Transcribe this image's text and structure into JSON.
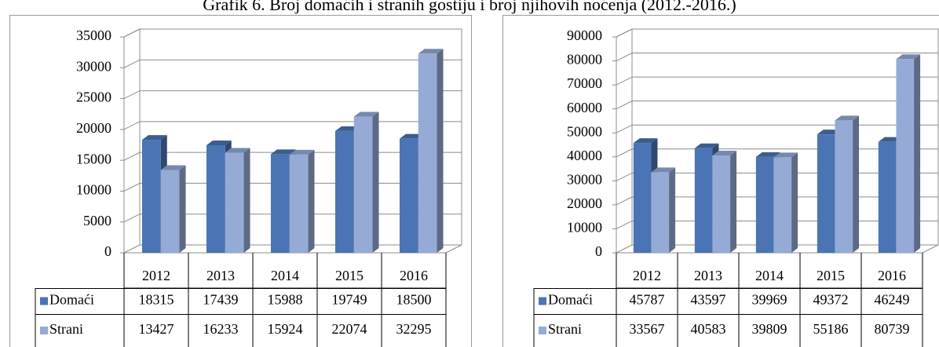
{
  "title": "Grafik 6. Broj domaćih i stranih gostiju i broj njihovih noćenja (2012.-2016.)",
  "chart_data": [
    {
      "type": "bar",
      "categories": [
        "2012",
        "2013",
        "2014",
        "2015",
        "2016"
      ],
      "series": [
        {
          "name": "Domaći",
          "color": "#4a74b4",
          "values": [
            18315,
            17439,
            15988,
            19749,
            18500
          ]
        },
        {
          "name": "Strani",
          "color": "#95abd6",
          "values": [
            13427,
            16233,
            15924,
            22074,
            32295
          ]
        }
      ],
      "ylim": [
        0,
        35000
      ],
      "yticks": [
        0,
        5000,
        10000,
        15000,
        20000,
        25000,
        30000,
        35000
      ],
      "grid": true
    },
    {
      "type": "bar",
      "categories": [
        "2012",
        "2013",
        "2014",
        "2015",
        "2016"
      ],
      "series": [
        {
          "name": "Domaći",
          "color": "#4a74b4",
          "values": [
            45787,
            43597,
            39969,
            49372,
            46249
          ]
        },
        {
          "name": "Strani",
          "color": "#95abd6",
          "values": [
            33567,
            40583,
            39809,
            55186,
            80739
          ]
        }
      ],
      "ylim": [
        0,
        90000
      ],
      "yticks": [
        0,
        10000,
        20000,
        30000,
        40000,
        50000,
        60000,
        70000,
        80000,
        90000
      ],
      "grid": true
    }
  ]
}
